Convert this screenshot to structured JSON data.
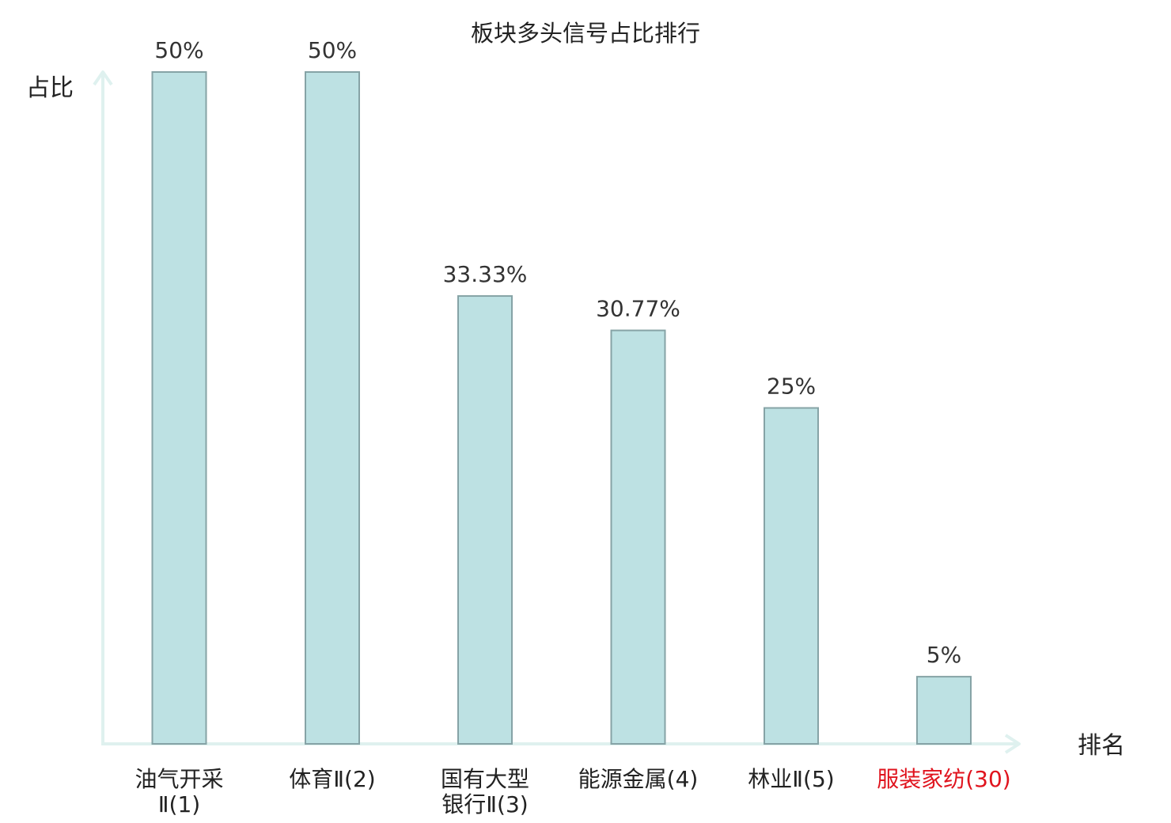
{
  "chart_data": {
    "type": "bar",
    "title": "板块多头信号占比排行",
    "ylabel": "占比",
    "xlabel": "排名",
    "ylim": [
      0,
      50
    ],
    "grid": false,
    "categories": [
      [
        "油气开采",
        "Ⅱ(1)"
      ],
      [
        "体育Ⅱ(2)"
      ],
      [
        "国有大型",
        "银行Ⅱ(3)"
      ],
      [
        "能源金属(4)"
      ],
      [
        "林业Ⅱ(5)"
      ],
      [
        "服装家纺(30)"
      ]
    ],
    "values": [
      50,
      50,
      33.33,
      30.77,
      25,
      5
    ],
    "value_labels": [
      "50%",
      "50%",
      "33.33%",
      "30.77%",
      "25%",
      "5%"
    ],
    "highlight_index": 5,
    "colors": {
      "bar_fill": "#bde1e3",
      "bar_stroke": "#86a3a6",
      "axis": "#dff1ef",
      "label_text": "#222222",
      "highlight_text": "#e0141e"
    }
  }
}
